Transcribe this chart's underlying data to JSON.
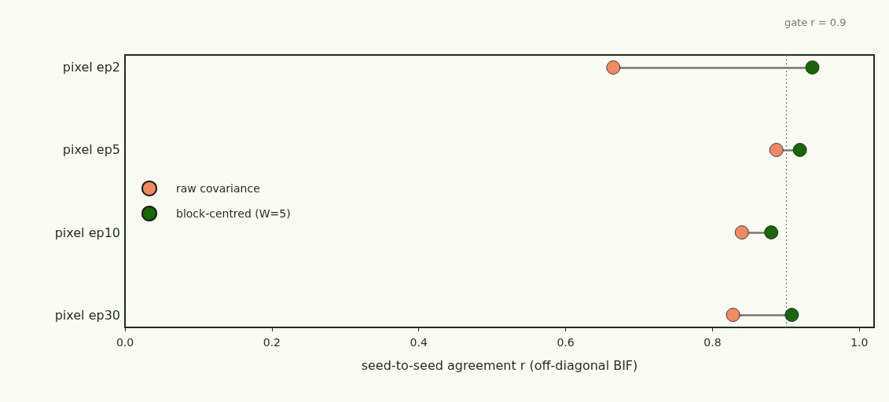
{
  "chart_data": {
    "type": "scatter",
    "orientation": "horizontal",
    "xlabel": "seed-to-seed agreement r (off-diagonal BIF)",
    "categories": [
      "pixel ep2",
      "pixel ep5",
      "pixel ep10",
      "pixel ep30"
    ],
    "series": [
      {
        "name": "raw covariance",
        "color": "#ef8a62",
        "values": [
          0.665,
          0.887,
          0.84,
          0.828
        ]
      },
      {
        "name": "block-centred (W=5)",
        "color": "#1a6608",
        "values": [
          0.936,
          0.919,
          0.88,
          0.908
        ]
      }
    ],
    "xlim": [
      0,
      1.02
    ],
    "xticks": [
      {
        "value": 0,
        "label": "0.0"
      },
      0.2,
      0.4,
      0.6,
      0.8,
      {
        "value": 1,
        "label": "1.0"
      }
    ],
    "ref_lines": [
      {
        "axis": "x",
        "value": 0.9,
        "label": "gate r = 0.9",
        "color": "#777777",
        "line_style": "dotted"
      }
    ],
    "legend": "left",
    "grid": false,
    "marker": "circle"
  }
}
